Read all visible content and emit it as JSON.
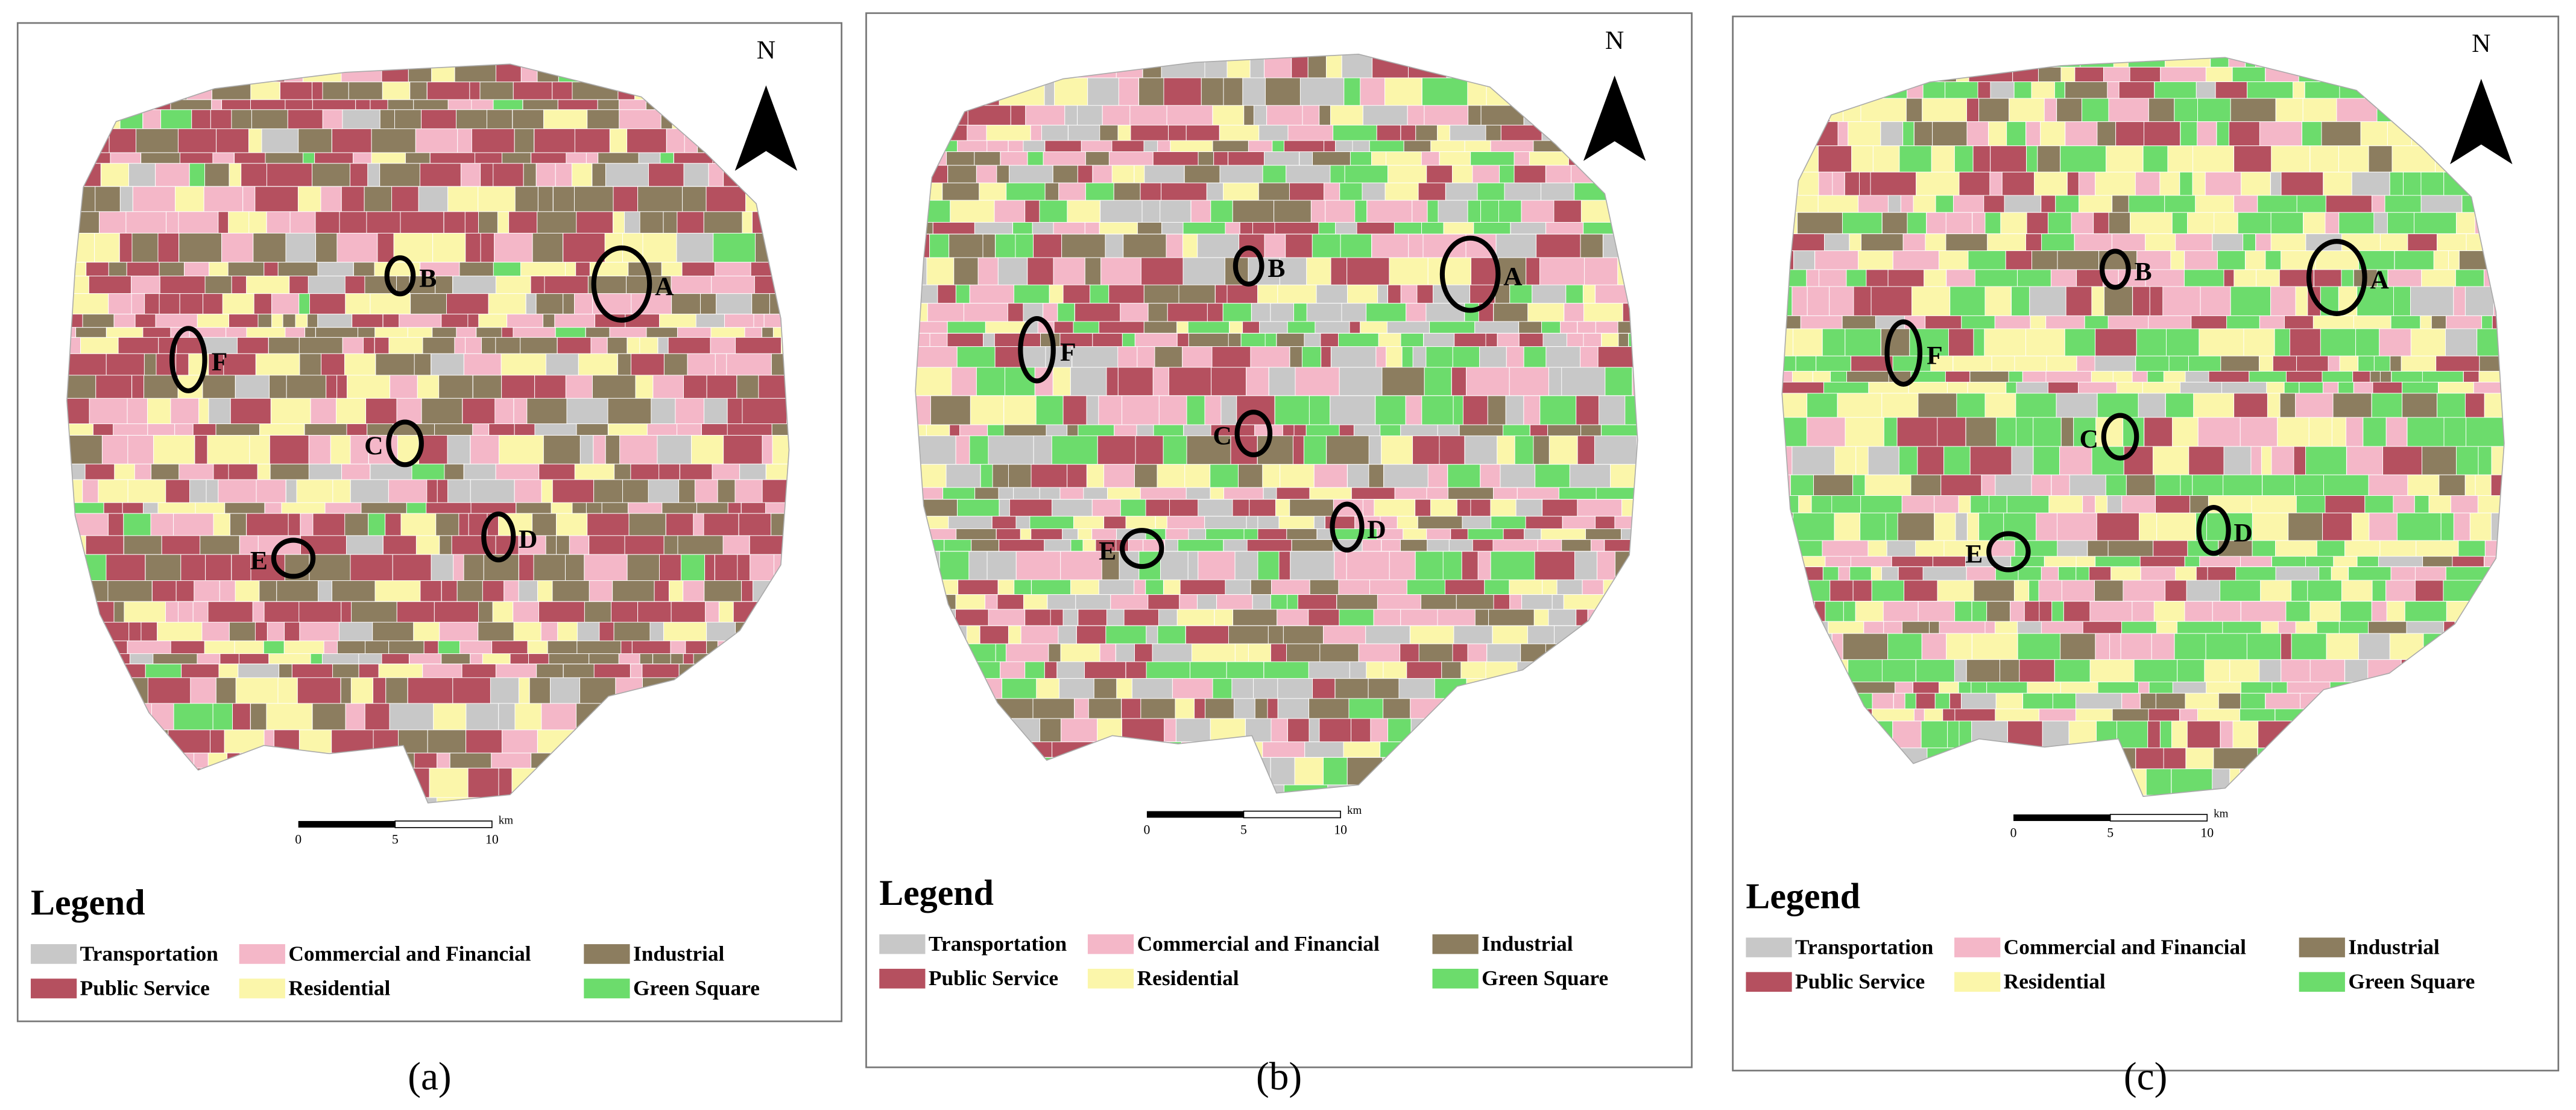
{
  "panels": [
    {
      "caption": "(a)"
    },
    {
      "caption": "(b)"
    },
    {
      "caption": "(c)"
    }
  ],
  "north": "N",
  "sites": [
    "A",
    "B",
    "C",
    "D",
    "E",
    "F"
  ],
  "scale_bar": {
    "labels": [
      "0",
      "5",
      "10"
    ],
    "unit": "km"
  },
  "legend": {
    "title": "Legend",
    "items": [
      {
        "label": "Transportation",
        "color": "#c8c8c8"
      },
      {
        "label": "Commercial and Financial",
        "color": "#f4b7c8"
      },
      {
        "label": "Industrial",
        "color": "#8c7d5f"
      },
      {
        "label": "Public Service",
        "color": "#b5505f"
      },
      {
        "label": "Residential",
        "color": "#fbf6aa"
      },
      {
        "label": "Green Square",
        "color": "#6cdc6c"
      }
    ]
  }
}
